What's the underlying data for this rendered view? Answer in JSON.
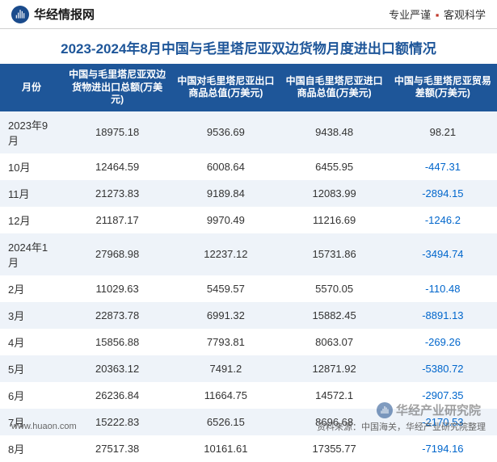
{
  "header": {
    "logo_text": "华经情报网",
    "tagline_left": "专业严谨",
    "tagline_right": "客观科学"
  },
  "title": "2023-2024年8月中国与毛里塔尼亚双边货物月度进出口额情况",
  "table": {
    "columns": [
      "月份",
      "中国与毛里塔尼亚双边货物进出口总额(万美元)",
      "中国对毛里塔尼亚出口商品总值(万美元)",
      "中国自毛里塔尼亚进口商品总值(万美元)",
      "中国与毛里塔尼亚贸易差额(万美元)"
    ],
    "rows": [
      {
        "month": "2023年9月",
        "total": "18975.18",
        "export": "9536.69",
        "import": "9438.48",
        "balance": "98.21",
        "neg": false
      },
      {
        "month": "10月",
        "total": "12464.59",
        "export": "6008.64",
        "import": "6455.95",
        "balance": "-447.31",
        "neg": true
      },
      {
        "month": "11月",
        "total": "21273.83",
        "export": "9189.84",
        "import": "12083.99",
        "balance": "-2894.15",
        "neg": true
      },
      {
        "month": "12月",
        "total": "21187.17",
        "export": "9970.49",
        "import": "11216.69",
        "balance": "-1246.2",
        "neg": true
      },
      {
        "month": "2024年1月",
        "total": "27968.98",
        "export": "12237.12",
        "import": "15731.86",
        "balance": "-3494.74",
        "neg": true
      },
      {
        "month": "2月",
        "total": "11029.63",
        "export": "5459.57",
        "import": "5570.05",
        "balance": "-110.48",
        "neg": true
      },
      {
        "month": "3月",
        "total": "22873.78",
        "export": "6991.32",
        "import": "15882.45",
        "balance": "-8891.13",
        "neg": true
      },
      {
        "month": "4月",
        "total": "15856.88",
        "export": "7793.81",
        "import": "8063.07",
        "balance": "-269.26",
        "neg": true
      },
      {
        "month": "5月",
        "total": "20363.12",
        "export": "7491.2",
        "import": "12871.92",
        "balance": "-5380.72",
        "neg": true
      },
      {
        "month": "6月",
        "total": "26236.84",
        "export": "11664.75",
        "import": "14572.1",
        "balance": "-2907.35",
        "neg": true
      },
      {
        "month": "7月",
        "total": "15222.83",
        "export": "6526.15",
        "import": "8696.68",
        "balance": "-2170.53",
        "neg": true
      },
      {
        "month": "8月",
        "total": "27517.38",
        "export": "10161.61",
        "import": "17355.77",
        "balance": "-7194.16",
        "neg": true
      }
    ],
    "header_bg": "#1e5699",
    "header_color": "#ffffff",
    "row_odd_bg": "#eef3f9",
    "row_even_bg": "#ffffff",
    "text_color": "#333333",
    "negative_color": "#0066cc",
    "font_size": 13
  },
  "footer": {
    "url": "www.huaon.com",
    "source": "资料来源：中国海关，华经产业研究院整理"
  },
  "watermark": {
    "text": "华经产业研究院"
  },
  "colors": {
    "brand_blue": "#1e5699",
    "logo_blue": "#1a4b8c",
    "tagline_dot": "#c0392b"
  }
}
